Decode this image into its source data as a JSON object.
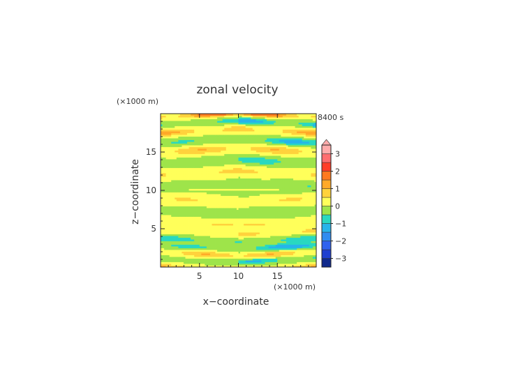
{
  "chart_data": {
    "type": "heatmap",
    "title": "zonal velocity",
    "xlabel": "x−coordinate",
    "ylabel": "z−coordinate",
    "x_unit": "(×1000 m)",
    "y_unit": "(×1000 m)",
    "time_label": "8400 s",
    "xlim": [
      0,
      20
    ],
    "ylim": [
      0,
      20
    ],
    "x_ticks": [
      5,
      10,
      15
    ],
    "y_ticks": [
      5,
      10,
      15
    ],
    "x_tick_labels": [
      "5",
      "10",
      "15"
    ],
    "y_tick_labels": [
      "5",
      "10",
      "15"
    ],
    "colorbar": {
      "levels": [
        -3.5,
        -3,
        -2.5,
        -2,
        -1.5,
        -1,
        -0.5,
        0,
        0.5,
        1,
        1.5,
        2,
        2.5,
        3,
        3.5
      ],
      "colors": [
        "#102a8c",
        "#1f3fd0",
        "#2f62ee",
        "#2f8cf0",
        "#27b4ea",
        "#29d8c0",
        "#9ee44a",
        "#ffff5a",
        "#ffd23c",
        "#ffa928",
        "#ff7a20",
        "#ff3e28",
        "#ff6e70",
        "#ffabab"
      ],
      "tick_values": [
        3,
        2,
        1,
        0,
        -1,
        -2,
        -3
      ],
      "tick_labels": [
        "3",
        "2",
        "1",
        "0",
        "−1",
        "−2",
        "−3"
      ],
      "extend": "max"
    },
    "bands": [
      {
        "z": 19.6,
        "amp": 1.8,
        "w": 0.35
      },
      {
        "z": 18.6,
        "amp": -1.2,
        "w": 0.4
      },
      {
        "z": 17.5,
        "amp": 1.1,
        "w": 0.45
      },
      {
        "z": 16.2,
        "amp": -1.0,
        "w": 0.45
      },
      {
        "z": 15.0,
        "amp": 0.9,
        "w": 0.5
      },
      {
        "z": 13.5,
        "amp": -0.7,
        "w": 0.5
      },
      {
        "z": 12.0,
        "amp": 0.6,
        "w": 0.6
      },
      {
        "z": 10.5,
        "amp": -0.4,
        "w": 0.6
      },
      {
        "z": 9.0,
        "amp": 0.5,
        "w": 0.6
      },
      {
        "z": 7.5,
        "amp": -0.3,
        "w": 0.6
      },
      {
        "z": 6.0,
        "amp": 0.5,
        "w": 0.5
      },
      {
        "z": 4.8,
        "amp": 0.7,
        "w": 0.4
      },
      {
        "z": 3.8,
        "amp": -0.8,
        "w": 0.4
      },
      {
        "z": 2.9,
        "amp": -1.2,
        "w": 0.4
      },
      {
        "z": 2.0,
        "amp": 0.9,
        "w": 0.4
      },
      {
        "z": 1.2,
        "amp": -0.9,
        "w": 0.35
      },
      {
        "z": 0.2,
        "amp": 1.0,
        "w": 0.3
      }
    ]
  }
}
